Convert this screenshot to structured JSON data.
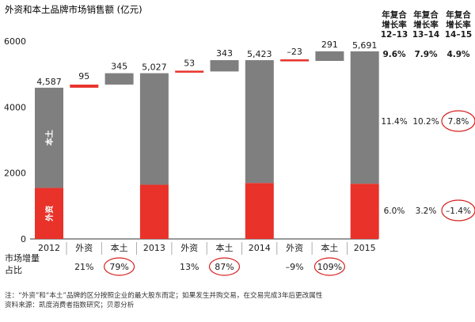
{
  "chart_data": {
    "type": "bar",
    "title": "外资和本土品牌市场销售额 (亿元)",
    "ylim": [
      0,
      6000
    ],
    "yticks": [
      0,
      2000,
      4000,
      6000
    ],
    "columns": [
      {
        "label": "2012",
        "kind": "total",
        "total": 4587,
        "foreign": 1550,
        "total_label": "4,587"
      },
      {
        "label": "外资",
        "kind": "delta",
        "value": 95,
        "value_label": "95",
        "share": "21%",
        "circled": false
      },
      {
        "label": "本土",
        "kind": "delta",
        "value": 345,
        "value_label": "345",
        "share": "79%",
        "circled": true
      },
      {
        "label": "2013",
        "kind": "total",
        "total": 5027,
        "foreign": 1645,
        "total_label": "5,027"
      },
      {
        "label": "外资",
        "kind": "delta",
        "value": 53,
        "value_label": "53",
        "share": "13%",
        "circled": false
      },
      {
        "label": "本土",
        "kind": "delta",
        "value": 343,
        "value_label": "343",
        "share": "87%",
        "circled": true
      },
      {
        "label": "2014",
        "kind": "total",
        "total": 5423,
        "foreign": 1698,
        "total_label": "5,423"
      },
      {
        "label": "外资",
        "kind": "delta",
        "value": -23,
        "value_label": "–23",
        "share": "–9%",
        "circled": false
      },
      {
        "label": "本土",
        "kind": "delta",
        "value": 291,
        "value_label": "291",
        "share": "109%",
        "circled": true
      },
      {
        "label": "2015",
        "kind": "total",
        "total": 5691,
        "foreign": 1675,
        "total_label": "5,691"
      }
    ],
    "segment_labels": {
      "domestic": "本土",
      "foreign": "外资"
    },
    "share_row_label": [
      "市场增量",
      "占比"
    ],
    "cagr": {
      "headers": [
        {
          "lines": [
            "年复合",
            "增长率",
            "12–13"
          ]
        },
        {
          "lines": [
            "年复合",
            "增长率",
            "13–14"
          ]
        },
        {
          "lines": [
            "年复合",
            "增长率",
            "14–15"
          ]
        }
      ],
      "rows": [
        {
          "values": [
            "9.6%",
            "7.9%",
            "4.9%"
          ],
          "bold": true,
          "circled_col": -1
        },
        {
          "values": [
            "11.4%",
            "10.2%",
            "7.8%"
          ],
          "bold": false,
          "circled_col": 2
        },
        {
          "values": [
            "6.0%",
            "3.2%",
            "–1.4%"
          ],
          "bold": false,
          "circled_col": 2
        }
      ]
    },
    "notes": [
      "注：“外资”和“本土”品牌的区分按照企业的最大股东而定；如果发生并购交易，在交易完成3年后更改属性",
      "资料来源：凯度消费者指数研究；贝恩分析"
    ]
  },
  "colors": {
    "foreign": "#e8322a",
    "domestic": "#7f7f7f",
    "domestic_dark": "#6a6a6a",
    "circle": "#d62020",
    "text": "#1a1a1a"
  }
}
